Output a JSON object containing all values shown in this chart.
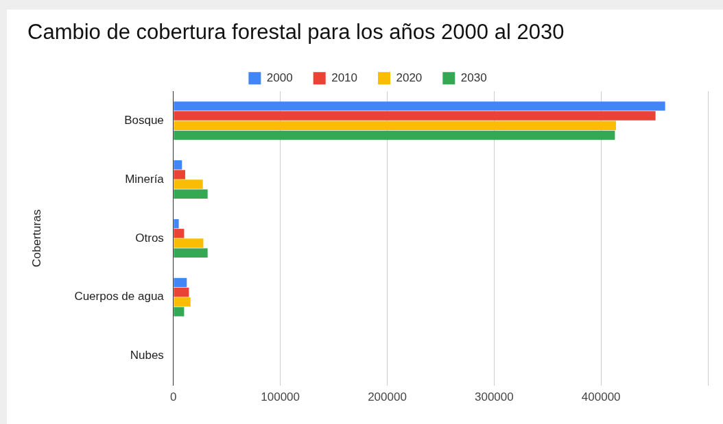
{
  "chart_data": {
    "type": "bar",
    "orientation": "horizontal",
    "title": "Cambio de cobertura forestal para los años 2000 al 2030",
    "ylabel": "Coberturas",
    "categories": [
      "Bosque",
      "Minería",
      "Otros",
      "Cuerpos de agua",
      "Nubes"
    ],
    "series": [
      {
        "name": "2000",
        "color": "#4285f4",
        "values": [
          460000,
          8000,
          5000,
          12500,
          0
        ]
      },
      {
        "name": "2010",
        "color": "#ea4335",
        "values": [
          451000,
          11000,
          10000,
          14500,
          0
        ]
      },
      {
        "name": "2020",
        "color": "#fbbc04",
        "values": [
          414000,
          27500,
          28000,
          16000,
          0
        ]
      },
      {
        "name": "2030",
        "color": "#34a853",
        "values": [
          413000,
          32000,
          32000,
          10000,
          0
        ]
      }
    ],
    "xlim": [
      0,
      500000
    ],
    "xticks": [
      0,
      100000,
      200000,
      300000,
      400000,
      {
        "value": 500000,
        "label": null
      }
    ],
    "grid": "x",
    "legend": "top"
  }
}
